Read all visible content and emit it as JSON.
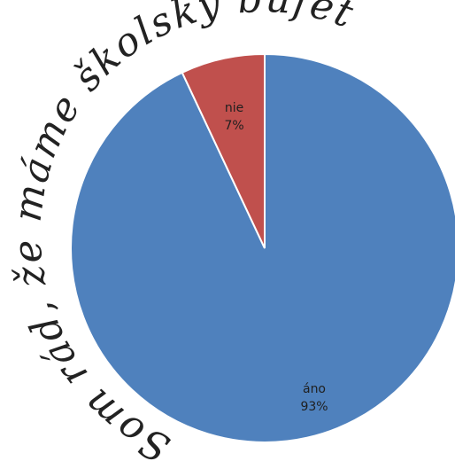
{
  "chart_data": {
    "type": "pie",
    "title": "Som rád, že máme školský bufet.",
    "categories": [
      "áno",
      "nie"
    ],
    "values": [
      93,
      7
    ],
    "value_labels": [
      "93%",
      "7%"
    ],
    "start_angle": "12 o'clock",
    "direction": "counterclockwise for 'nie' from top",
    "colors": [
      "#4F81BD",
      "#C0504D"
    ],
    "slice_border": "#ffffff",
    "legend": "none",
    "title_style": "handwritten, curved around upper-left of pie"
  }
}
